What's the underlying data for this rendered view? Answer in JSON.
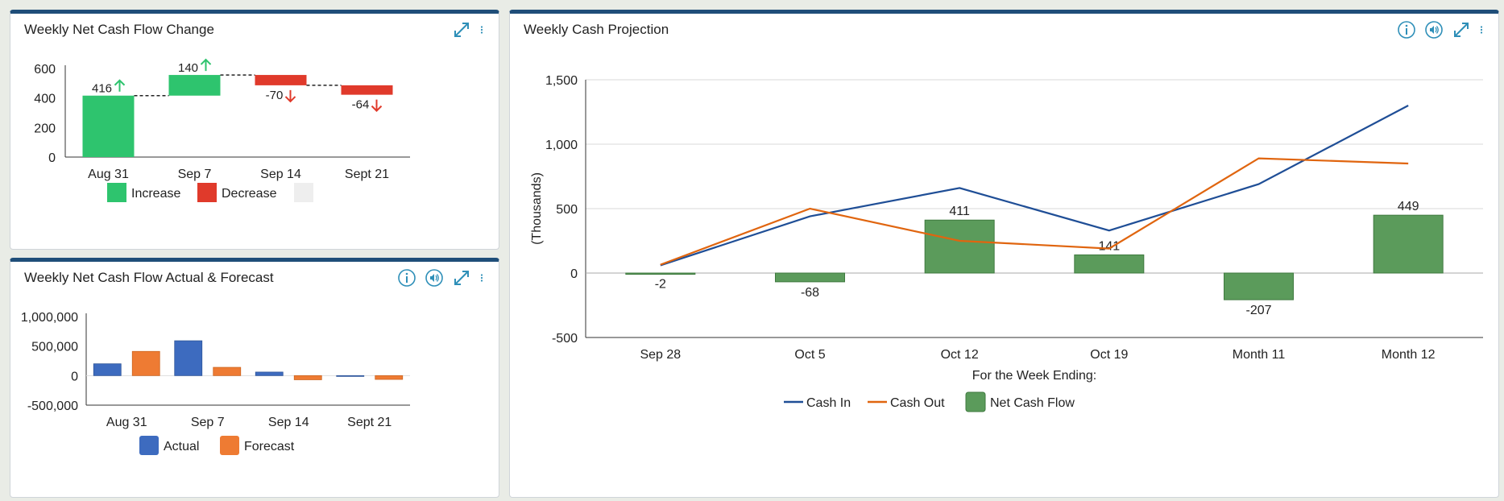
{
  "panels": {
    "waterfall": {
      "title": "Weekly Net Cash Flow Change"
    },
    "actual": {
      "title": "Weekly Net Cash Flow Actual & Forecast"
    },
    "projection": {
      "title": "Weekly Cash Projection"
    }
  },
  "colors": {
    "increase": "#2ec46e",
    "decrease": "#e03a2b",
    "actual": "#3d6bbf",
    "forecast": "#ee7b33",
    "cash_in": "#1f4e96",
    "cash_out": "#e0650f",
    "net": "#5b9b5b",
    "icon": "#2e8fb8",
    "header": "#1f4e79"
  },
  "icons": [
    "info-icon",
    "speaker-icon",
    "expand-icon",
    "kebab-menu-icon"
  ],
  "chart_data": [
    {
      "id": "waterfall",
      "type": "bar",
      "subtype": "waterfall",
      "title": "",
      "categories": [
        "Aug 31",
        "Sep 7",
        "Sep 14",
        "Sept 21"
      ],
      "values": [
        416,
        140,
        -70,
        -64
      ],
      "data_labels": [
        "416",
        "140",
        "-70",
        "-64"
      ],
      "ylim": [
        0,
        600
      ],
      "yticks": [
        "0",
        "200",
        "400",
        "600"
      ],
      "legend": [
        "Increase",
        "Decrease",
        ""
      ],
      "legend_position": "bottom"
    },
    {
      "id": "actual-forecast",
      "type": "bar",
      "title": "",
      "categories": [
        "Aug 31",
        "Sep 7",
        "Sep 14",
        "Sept 21"
      ],
      "series": [
        {
          "name": "Actual",
          "values": [
            200000,
            590000,
            60000,
            -10000
          ]
        },
        {
          "name": "Forecast",
          "values": [
            410000,
            140000,
            -70000,
            -64000
          ]
        }
      ],
      "ylim": [
        -500000,
        1000000
      ],
      "yticks": [
        "-500,000",
        "0",
        "500,000",
        "1,000,000"
      ],
      "legend_position": "bottom"
    },
    {
      "id": "projection",
      "type": "bar",
      "subtype": "bar+line",
      "title": "",
      "categories": [
        "Sep 28",
        "Oct 5",
        "Oct 12",
        "Oct 19",
        "Month 11",
        "Month 12"
      ],
      "xlabel": "For the Week Ending:",
      "ylabel": "(Thousands)",
      "ylim": [
        -500,
        1500
      ],
      "yticks": [
        "-500",
        "0",
        "500",
        "1,000",
        "1,500"
      ],
      "grid": true,
      "series": [
        {
          "name": "Cash In",
          "type": "line",
          "values": [
            60,
            440,
            660,
            330,
            690,
            1300
          ]
        },
        {
          "name": "Cash Out",
          "type": "line",
          "values": [
            65,
            500,
            250,
            190,
            890,
            850
          ]
        },
        {
          "name": "Net Cash Flow",
          "type": "bar",
          "values": [
            -2,
            -68,
            411,
            141,
            -207,
            449
          ],
          "data_labels": [
            "-2",
            "-68",
            "411",
            "141",
            "-207",
            "449"
          ]
        }
      ],
      "legend_position": "bottom"
    }
  ]
}
